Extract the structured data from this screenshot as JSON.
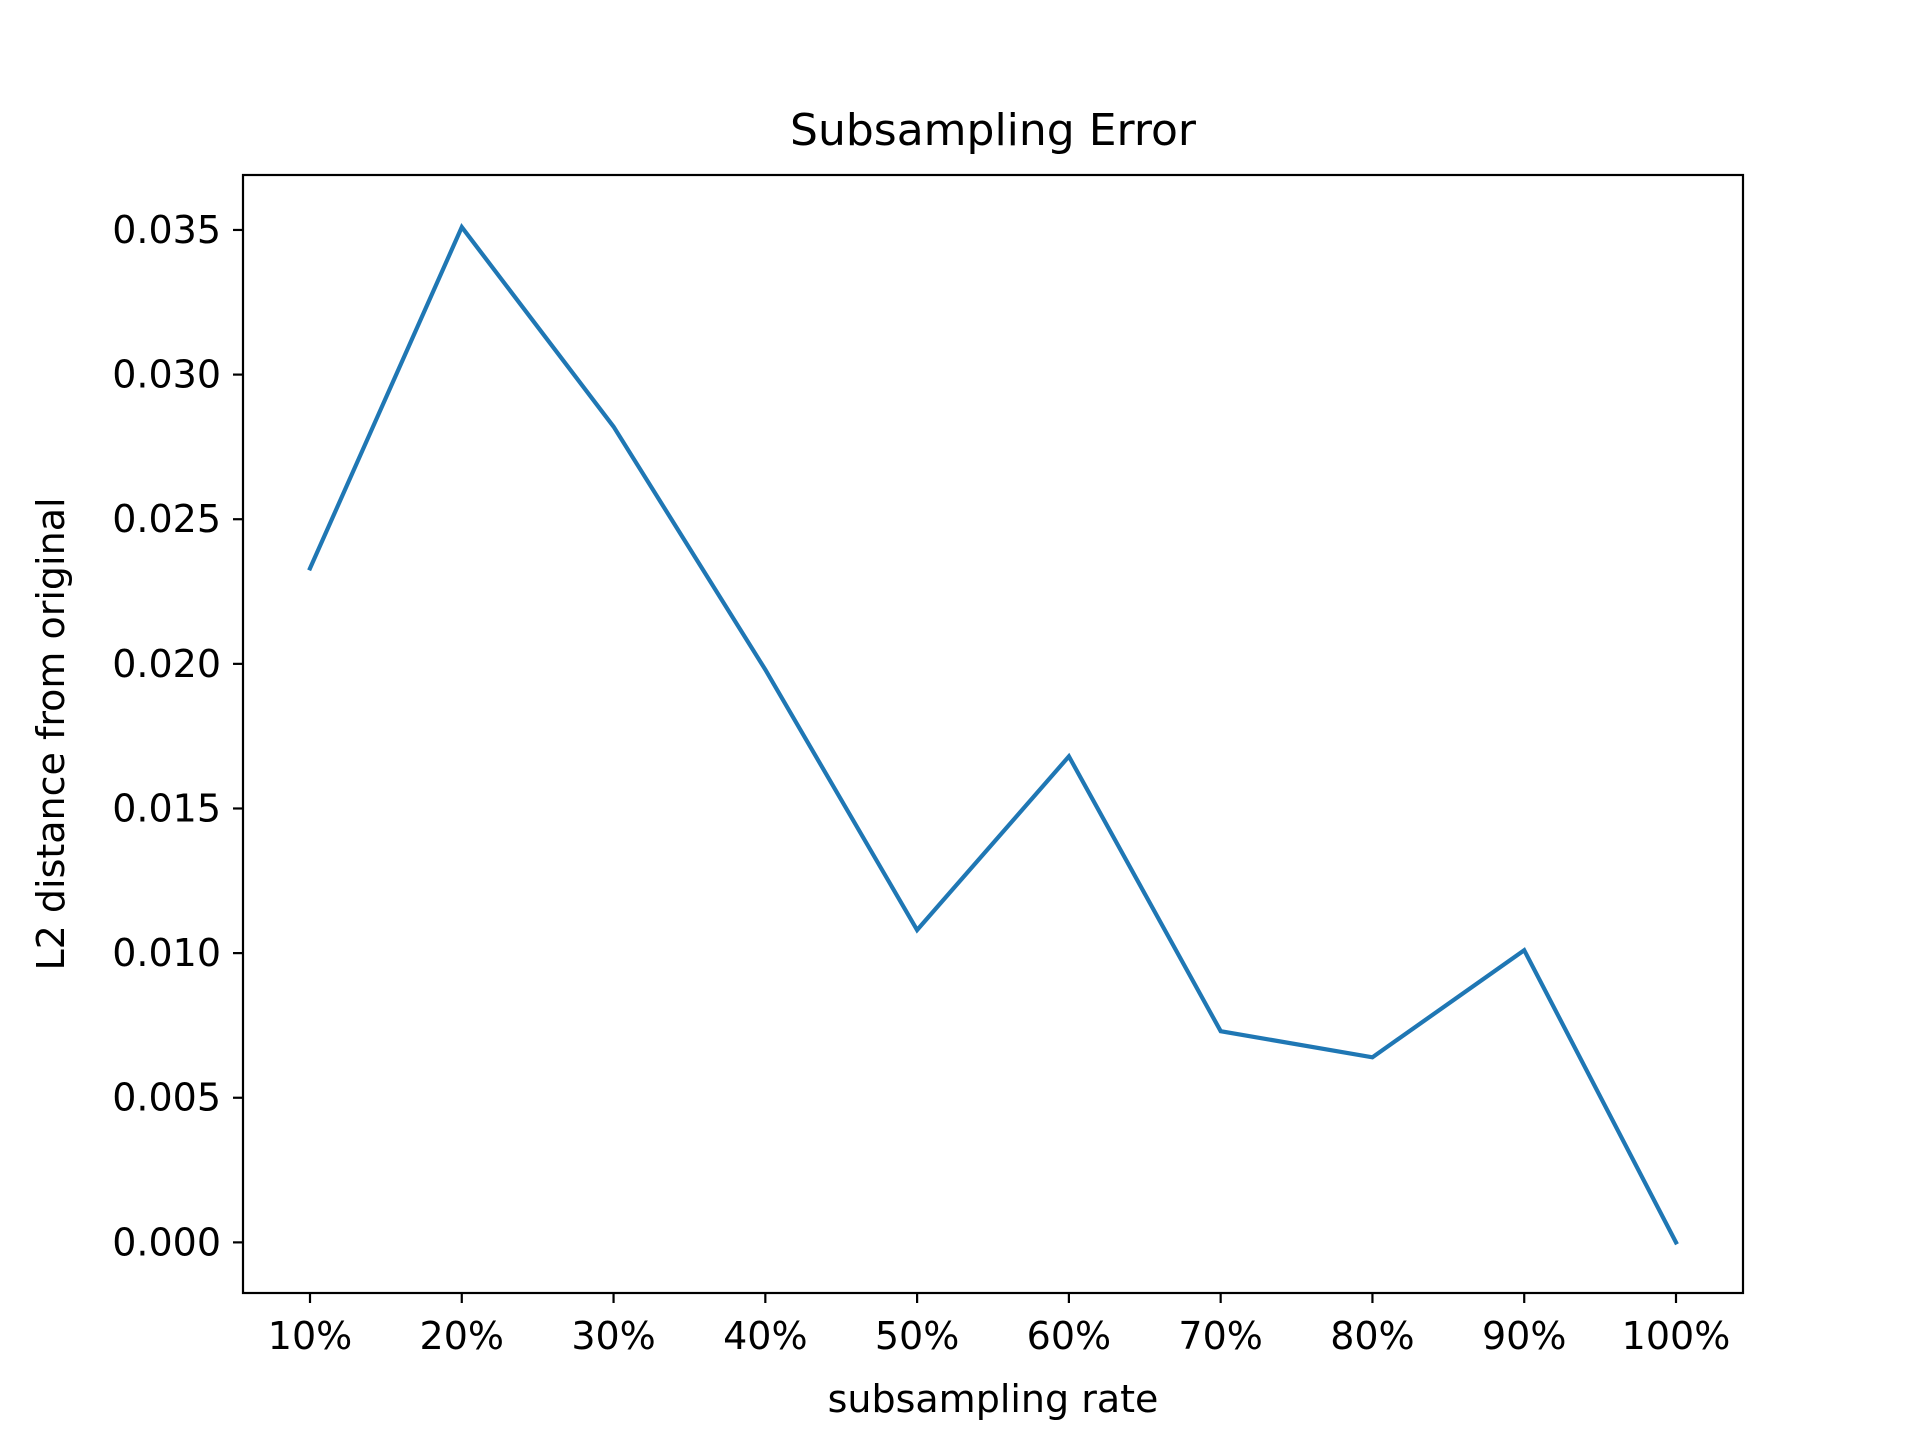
{
  "chart_data": {
    "type": "line",
    "title": "Subsampling Error",
    "xlabel": "subsampling rate",
    "ylabel": "L2 distance from original",
    "categories": [
      "10%",
      "20%",
      "30%",
      "40%",
      "50%",
      "60%",
      "70%",
      "80%",
      "90%",
      "100%"
    ],
    "series": [
      {
        "values": [
          0.0233,
          0.0351,
          0.0282,
          0.0198,
          0.0108,
          0.0168,
          0.0073,
          0.0064,
          0.0101,
          0.0
        ],
        "color": "#1f77b4"
      }
    ],
    "ylim": [
      -0.00175,
      0.0369
    ],
    "yticks": [
      0.0,
      0.005,
      0.01,
      0.015,
      0.02,
      0.025,
      0.03,
      0.035
    ],
    "ytick_labels": [
      "0.000",
      "0.005",
      "0.010",
      "0.015",
      "0.020",
      "0.025",
      "0.030",
      "0.035"
    ],
    "grid": false,
    "legend": "none"
  }
}
